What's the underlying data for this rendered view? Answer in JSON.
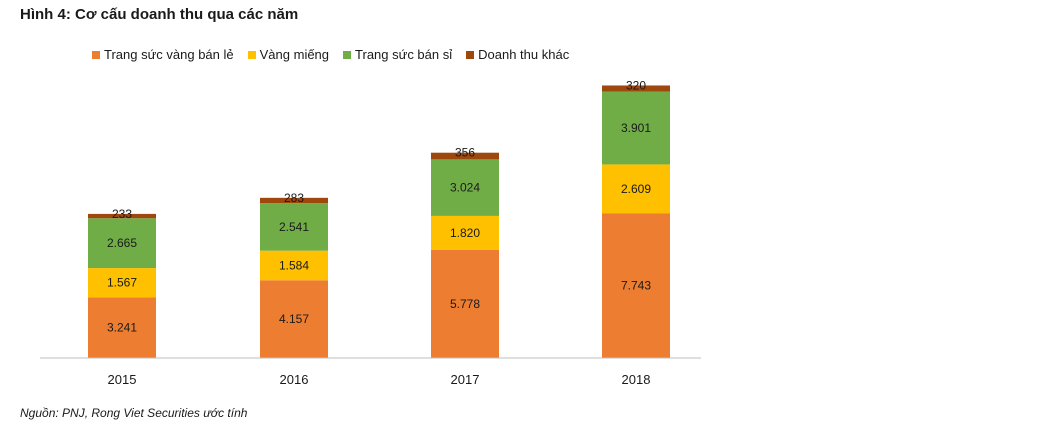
{
  "figure_title": "Hình 4: Cơ cấu doanh thu qua các năm",
  "source_note": "Nguồn: PNJ, Rong Viet Securities ước tính",
  "chart_data": {
    "type": "bar",
    "stacked": true,
    "categories": [
      "2015",
      "2016",
      "2017",
      "2018"
    ],
    "series": [
      {
        "name": "Trang sức vàng bán lẻ",
        "color": "#ED7D31",
        "values": [
          3241,
          4157,
          5778,
          7743
        ],
        "labels": [
          "3.241",
          "4.157",
          "5.778",
          "7.743"
        ]
      },
      {
        "name": "Vàng miếng",
        "color": "#FFC000",
        "values": [
          1567,
          1584,
          1820,
          2609
        ],
        "labels": [
          "1.567",
          "1.584",
          "1.820",
          "2.609"
        ]
      },
      {
        "name": "Trang sức bán sỉ",
        "color": "#70AD47",
        "values": [
          2665,
          2541,
          3024,
          3901
        ],
        "labels": [
          "2.665",
          "2.541",
          "3.024",
          "3.901"
        ]
      },
      {
        "name": "Doanh thu khác",
        "color": "#9E480E",
        "values": [
          233,
          283,
          356,
          320
        ],
        "labels": [
          "233",
          "283",
          "356",
          "320"
        ]
      }
    ],
    "title": "Hình 4: Cơ cấu doanh thu qua các năm",
    "xlabel": "",
    "ylabel": "",
    "ylim": [
      0,
      15000
    ],
    "grid": false,
    "legend_position": "top"
  }
}
